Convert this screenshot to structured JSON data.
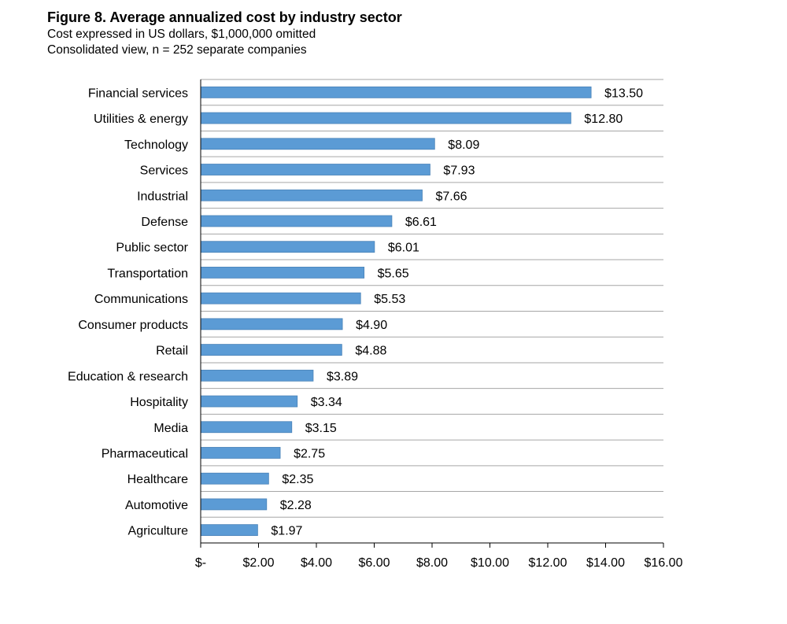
{
  "chart_data": {
    "type": "bar",
    "orientation": "horizontal",
    "title": "Figure 8. Average annualized cost by industry sector",
    "subtitle_lines": [
      "Cost expressed in US dollars, $1,000,000 omitted",
      "Consolidated view, n = 252 separate companies"
    ],
    "categories": [
      "Financial services",
      "Utilities & energy",
      "Technology",
      "Services",
      "Industrial",
      "Defense",
      "Public sector",
      "Transportation",
      "Communications",
      "Consumer products",
      "Retail",
      "Education & research",
      "Hospitality",
      "Media",
      "Pharmaceutical",
      "Healthcare",
      "Automotive",
      "Agriculture"
    ],
    "values": [
      13.5,
      12.8,
      8.09,
      7.93,
      7.66,
      6.61,
      6.01,
      5.65,
      5.53,
      4.9,
      4.88,
      3.89,
      3.34,
      3.15,
      2.75,
      2.35,
      2.28,
      1.97
    ],
    "value_labels": [
      "$13.50",
      "$12.80",
      "$8.09",
      "$7.93",
      "$7.66",
      "$6.61",
      "$6.01",
      "$5.65",
      "$5.53",
      "$4.90",
      "$4.88",
      "$3.89",
      "$3.34",
      "$3.15",
      "$2.75",
      "$2.35",
      "$2.28",
      "$1.97"
    ],
    "xlim": [
      0,
      16
    ],
    "x_ticks": [
      0,
      2,
      4,
      6,
      8,
      10,
      12,
      14,
      16
    ],
    "x_tick_labels": [
      "$-",
      "$2.00",
      "$4.00",
      "$6.00",
      "$8.00",
      "$10.00",
      "$12.00",
      "$14.00",
      "$16.00"
    ],
    "grid": "horizontal lines between categories",
    "legend": "none",
    "colors": {
      "bar": "#5b9bd5",
      "bar_edge": "#4a83b8",
      "gridline": "#a6a6a6",
      "axis": "#000000"
    }
  }
}
